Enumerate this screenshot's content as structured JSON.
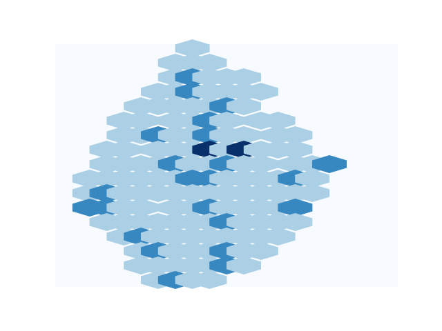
{
  "chart_data": {
    "type": "heatmap",
    "subtype": "hexbin",
    "title": "",
    "xlabel": "",
    "ylabel": "",
    "axes_visible": false,
    "grid": false,
    "legend": "none",
    "colormap": "Blues",
    "gridsize": [
      20,
      16
    ],
    "xlim": [
      0,
      20
    ],
    "ylim": [
      0,
      16
    ],
    "color_levels": {
      "0": "#f7fbff",
      "1": "#abd0e6",
      "2": "#3787c0",
      "3": "#08306b"
    },
    "cells": [
      {
        "col": 3,
        "row": 16,
        "v": 1
      },
      {
        "col": 4,
        "row": 16,
        "v": 1
      },
      {
        "col": 5,
        "row": 16,
        "v": 1
      },
      {
        "col": 3,
        "row": 15,
        "v": 1
      },
      {
        "col": 4,
        "row": 15,
        "v": 2
      },
      {
        "col": 5,
        "row": 15,
        "v": 1
      },
      {
        "col": 6,
        "row": 15,
        "v": 1
      },
      {
        "col": 4,
        "row": 14,
        "v": 2
      },
      {
        "col": 5,
        "row": 14,
        "v": 1
      },
      {
        "col": 6,
        "row": 13,
        "v": 1
      },
      {
        "col": 7,
        "row": 11,
        "v": 1
      },
      {
        "col": 6,
        "row": 10,
        "v": 1
      },
      {
        "col": 7,
        "row": 10,
        "v": 1
      },
      {
        "col": 8,
        "row": 10,
        "v": 1
      },
      {
        "col": 6,
        "row": 9,
        "v": 1
      },
      {
        "col": 7,
        "row": 9,
        "v": 2
      },
      {
        "col": 8,
        "row": 9,
        "v": 1
      },
      {
        "col": 9,
        "row": 9,
        "v": 1
      },
      {
        "col": 10,
        "row": 9,
        "v": 1
      },
      {
        "col": 5,
        "row": 8,
        "v": 1
      },
      {
        "col": 6,
        "row": 8,
        "v": 1
      },
      {
        "col": 7,
        "row": 8,
        "v": 2
      },
      {
        "col": 8,
        "row": 8,
        "v": 1
      },
      {
        "col": 9,
        "row": 8,
        "v": 1
      },
      {
        "col": 10,
        "row": 8,
        "v": 1
      },
      {
        "col": 11,
        "row": 8,
        "v": 1
      },
      {
        "col": 4,
        "row": 7,
        "v": 1
      },
      {
        "col": 5,
        "row": 7,
        "v": 1
      },
      {
        "col": 6,
        "row": 7,
        "v": 1
      },
      {
        "col": 7,
        "row": 7,
        "v": 1
      },
      {
        "col": 8,
        "row": 7,
        "v": 1
      },
      {
        "col": 9,
        "row": 7,
        "v": 2
      },
      {
        "col": 10,
        "row": 7,
        "v": 1
      },
      {
        "col": 3,
        "row": 6,
        "v": 1
      },
      {
        "col": 4,
        "row": 6,
        "v": 1
      },
      {
        "col": 6,
        "row": 6,
        "v": 1
      },
      {
        "col": 7,
        "row": 6,
        "v": 1
      },
      {
        "col": 8,
        "row": 6,
        "v": 2
      },
      {
        "col": 9,
        "row": 6,
        "v": 1
      },
      {
        "col": 11,
        "row": 6,
        "v": 1
      },
      {
        "col": 12,
        "row": 6,
        "v": 1
      },
      {
        "col": 3,
        "row": 5,
        "v": 1
      },
      {
        "col": 4,
        "row": 5,
        "v": 1
      },
      {
        "col": 5,
        "row": 5,
        "v": 2
      },
      {
        "col": 6,
        "row": 5,
        "v": 1
      },
      {
        "col": 7,
        "row": 5,
        "v": 1
      },
      {
        "col": 8,
        "row": 5,
        "v": 2
      },
      {
        "col": 9,
        "row": 5,
        "v": 1
      },
      {
        "col": 10,
        "row": 5,
        "v": 1
      },
      {
        "col": 12,
        "row": 5,
        "v": 1
      },
      {
        "col": 13,
        "row": 5,
        "v": 1
      },
      {
        "col": 2,
        "row": 4,
        "v": 1
      },
      {
        "col": 3,
        "row": 4,
        "v": 1
      },
      {
        "col": 5,
        "row": 4,
        "v": 1
      },
      {
        "col": 6,
        "row": 4,
        "v": 1
      },
      {
        "col": 7,
        "row": 4,
        "v": 1
      },
      {
        "col": 8,
        "row": 4,
        "v": 3
      },
      {
        "col": 9,
        "row": 4,
        "v": 1
      },
      {
        "col": 10,
        "row": 4,
        "v": 3
      },
      {
        "col": 11,
        "row": 4,
        "v": 1
      },
      {
        "col": 12,
        "row": 4,
        "v": 1
      },
      {
        "col": 13,
        "row": 4,
        "v": 1
      },
      {
        "col": 2,
        "row": 3,
        "v": 1
      },
      {
        "col": 3,
        "row": 3,
        "v": 1
      },
      {
        "col": 4,
        "row": 3,
        "v": 1
      },
      {
        "col": 5,
        "row": 3,
        "v": 1
      },
      {
        "col": 6,
        "row": 3,
        "v": 2
      },
      {
        "col": 7,
        "row": 3,
        "v": 1
      },
      {
        "col": 8,
        "row": 3,
        "v": 1
      },
      {
        "col": 9,
        "row": 3,
        "v": 2
      },
      {
        "col": 10,
        "row": 3,
        "v": 1
      },
      {
        "col": 11,
        "row": 3,
        "v": 1
      },
      {
        "col": 13,
        "row": 3,
        "v": 1
      },
      {
        "col": 14,
        "row": 3,
        "v": 1
      },
      {
        "col": 15,
        "row": 3,
        "v": 2
      }
    ],
    "cells_lower": [
      {
        "col": 1,
        "row": 2,
        "v": 1
      },
      {
        "col": 2,
        "row": 2,
        "v": 1
      },
      {
        "col": 3,
        "row": 2,
        "v": 1
      },
      {
        "col": 4,
        "row": 2,
        "v": 1
      },
      {
        "col": 5,
        "row": 2,
        "v": 1
      },
      {
        "col": 6,
        "row": 2,
        "v": 1
      },
      {
        "col": 7,
        "row": 2,
        "v": 2
      },
      {
        "col": 8,
        "row": 2,
        "v": 2
      },
      {
        "col": 9,
        "row": 2,
        "v": 1
      },
      {
        "col": 10,
        "row": 2,
        "v": 1
      },
      {
        "col": 11,
        "row": 2,
        "v": 1
      },
      {
        "col": 12,
        "row": 2,
        "v": 1
      },
      {
        "col": 13,
        "row": 2,
        "v": 2
      },
      {
        "col": 14,
        "row": 2,
        "v": 1
      },
      {
        "col": 1,
        "row": 1,
        "v": 1
      },
      {
        "col": 2,
        "row": 1,
        "v": 2
      },
      {
        "col": 3,
        "row": 1,
        "v": 1
      },
      {
        "col": 4,
        "row": 1,
        "v": 1
      },
      {
        "col": 5,
        "row": 1,
        "v": 1
      },
      {
        "col": 6,
        "row": 1,
        "v": 1
      },
      {
        "col": 7,
        "row": 1,
        "v": 1
      },
      {
        "col": 8,
        "row": 1,
        "v": 1
      },
      {
        "col": 9,
        "row": 1,
        "v": 1
      },
      {
        "col": 10,
        "row": 1,
        "v": 1
      },
      {
        "col": 11,
        "row": 1,
        "v": 1
      },
      {
        "col": 12,
        "row": 1,
        "v": 1
      },
      {
        "col": 13,
        "row": 1,
        "v": 1
      },
      {
        "col": 14,
        "row": 1,
        "v": 1
      },
      {
        "col": 1,
        "row": 0,
        "v": 2
      },
      {
        "col": 2,
        "row": 0,
        "v": 2
      },
      {
        "col": 3,
        "row": 0,
        "v": 1
      },
      {
        "col": 4,
        "row": 0,
        "v": 1
      },
      {
        "col": 6,
        "row": 0,
        "v": 1
      },
      {
        "col": 7,
        "row": 0,
        "v": 1
      },
      {
        "col": 8,
        "row": 0,
        "v": 2
      },
      {
        "col": 9,
        "row": 0,
        "v": 1
      },
      {
        "col": 10,
        "row": 0,
        "v": 1
      },
      {
        "col": 11,
        "row": 0,
        "v": 1
      },
      {
        "col": 12,
        "row": 0,
        "v": 1
      },
      {
        "col": 13,
        "row": 0,
        "v": 2
      },
      {
        "col": 2,
        "row": -1,
        "v": 1
      },
      {
        "col": 3,
        "row": -1,
        "v": 1
      },
      {
        "col": 4,
        "row": -1,
        "v": 1
      },
      {
        "col": 5,
        "row": -1,
        "v": 1
      },
      {
        "col": 6,
        "row": -1,
        "v": 1
      },
      {
        "col": 7,
        "row": -1,
        "v": 1
      },
      {
        "col": 8,
        "row": -1,
        "v": 1
      },
      {
        "col": 9,
        "row": -1,
        "v": 2
      },
      {
        "col": 10,
        "row": -1,
        "v": 1
      },
      {
        "col": 11,
        "row": -1,
        "v": 1
      },
      {
        "col": 12,
        "row": -1,
        "v": 1
      },
      {
        "col": 13,
        "row": -1,
        "v": 1
      },
      {
        "col": 3,
        "row": -2,
        "v": 1
      },
      {
        "col": 4,
        "row": -2,
        "v": 2
      },
      {
        "col": 5,
        "row": -2,
        "v": 1
      },
      {
        "col": 6,
        "row": -2,
        "v": 1
      },
      {
        "col": 7,
        "row": -2,
        "v": 1
      },
      {
        "col": 8,
        "row": -2,
        "v": 1
      },
      {
        "col": 9,
        "row": -2,
        "v": 1
      },
      {
        "col": 10,
        "row": -2,
        "v": 1
      },
      {
        "col": 11,
        "row": -2,
        "v": 1
      },
      {
        "col": 12,
        "row": -2,
        "v": 1
      },
      {
        "col": 4,
        "row": -3,
        "v": 1
      },
      {
        "col": 5,
        "row": -3,
        "v": 2
      },
      {
        "col": 6,
        "row": -3,
        "v": 1
      },
      {
        "col": 7,
        "row": -3,
        "v": 1
      },
      {
        "col": 8,
        "row": -3,
        "v": 1
      },
      {
        "col": 9,
        "row": -3,
        "v": 2
      },
      {
        "col": 10,
        "row": -3,
        "v": 1
      },
      {
        "col": 11,
        "row": -3,
        "v": 1
      },
      {
        "col": 4,
        "row": -4,
        "v": 1
      },
      {
        "col": 5,
        "row": -4,
        "v": 1
      },
      {
        "col": 6,
        "row": -4,
        "v": 1
      },
      {
        "col": 7,
        "row": -4,
        "v": 1
      },
      {
        "col": 8,
        "row": -4,
        "v": 1
      },
      {
        "col": 9,
        "row": -4,
        "v": 2
      },
      {
        "col": 10,
        "row": -4,
        "v": 1
      },
      {
        "col": 5,
        "row": -5,
        "v": 1
      },
      {
        "col": 6,
        "row": -5,
        "v": 2
      },
      {
        "col": 7,
        "row": -5,
        "v": 1
      },
      {
        "col": 8,
        "row": -5,
        "v": 1
      }
    ]
  }
}
